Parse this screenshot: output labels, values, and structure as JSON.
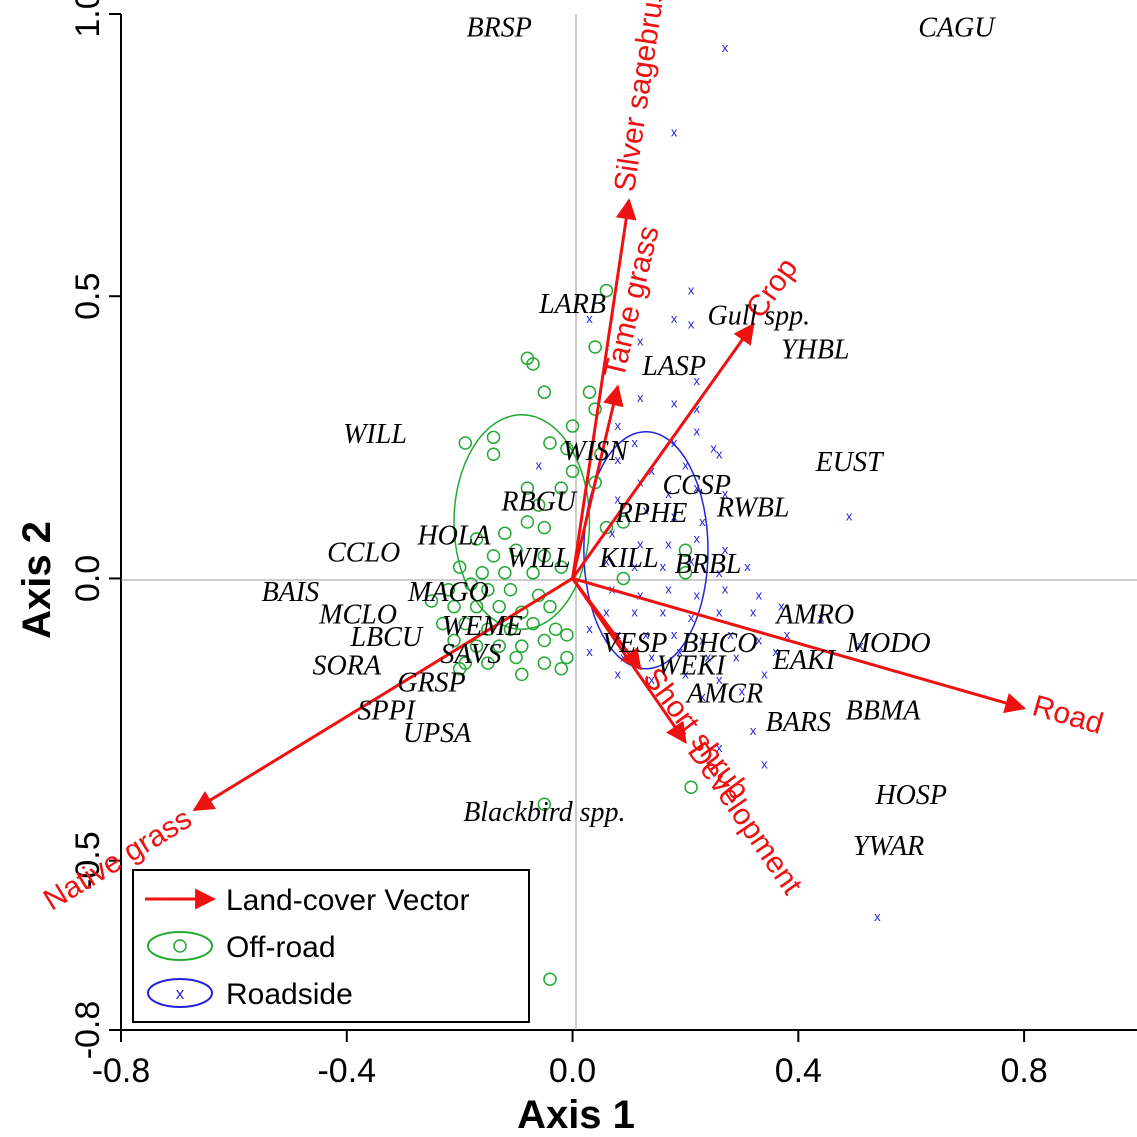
{
  "chart_data": {
    "type": "scatter",
    "xlabel": "Axis 1",
    "ylabel": "Axis 2",
    "xlim": [
      -0.8,
      1.0
    ],
    "ylim": [
      -0.8,
      1.0
    ],
    "xticks": [
      -0.8,
      -0.4,
      0.0,
      0.4,
      0.8
    ],
    "yticks": [
      -0.8,
      -0.5,
      0.0,
      0.5,
      1.0
    ],
    "xtick_labels": [
      "-0.8",
      "-0.4",
      "0.0",
      "0.4",
      "0.8"
    ],
    "ytick_labels": [
      "-0.8",
      "-0.5",
      "0.0",
      "0.5",
      "1.0"
    ],
    "reference_lines": {
      "x": 0,
      "y": 0
    },
    "legend": {
      "placement": "bottom-left",
      "entries": [
        {
          "label": "Land-cover Vector",
          "kind": "arrow",
          "color": "#ee1111"
        },
        {
          "label": "Off-road",
          "kind": "circle",
          "color": "#22aa33"
        },
        {
          "label": "Roadside",
          "kind": "x",
          "color": "#2222dd"
        }
      ]
    },
    "vectors": [
      {
        "label": "Silver sagebrush",
        "x": 0.1,
        "y": 0.67
      },
      {
        "label": "Tame grass",
        "x": 0.08,
        "y": 0.34
      },
      {
        "label": "Crop",
        "x": 0.32,
        "y": 0.45
      },
      {
        "label": "Road",
        "x": 0.8,
        "y": -0.23
      },
      {
        "label": "Development",
        "x": 0.2,
        "y": -0.29
      },
      {
        "label": "Short shrub",
        "x": 0.12,
        "y": -0.16
      },
      {
        "label": "Native grass",
        "x": -0.67,
        "y": -0.41
      }
    ],
    "ellipses": [
      {
        "group": "Off-road",
        "cx": -0.09,
        "cy": 0.1,
        "rx": 0.12,
        "ry": 0.19,
        "color": "#22aa33"
      },
      {
        "group": "Roadside",
        "cx": 0.13,
        "cy": 0.05,
        "rx": 0.11,
        "ry": 0.21,
        "color": "#2222dd"
      }
    ],
    "species": [
      {
        "label": "BRSP",
        "x": -0.13,
        "y": 0.96
      },
      {
        "label": "CAGU",
        "x": 0.68,
        "y": 0.96
      },
      {
        "label": "LARB",
        "x": 0.0,
        "y": 0.47
      },
      {
        "label": "Gull spp.",
        "x": 0.33,
        "y": 0.45
      },
      {
        "label": "YHBL",
        "x": 0.43,
        "y": 0.39
      },
      {
        "label": "LASP",
        "x": 0.18,
        "y": 0.36
      },
      {
        "label": "WILL",
        "x": -0.35,
        "y": 0.24
      },
      {
        "label": "WISN",
        "x": 0.04,
        "y": 0.21
      },
      {
        "label": "EUST",
        "x": 0.49,
        "y": 0.19
      },
      {
        "label": "CCSP",
        "x": 0.22,
        "y": 0.15
      },
      {
        "label": "RBGU",
        "x": -0.06,
        "y": 0.12
      },
      {
        "label": "RPHE",
        "x": 0.14,
        "y": 0.1
      },
      {
        "label": "RWBL",
        "x": 0.32,
        "y": 0.11
      },
      {
        "label": "HOLA",
        "x": -0.21,
        "y": 0.06
      },
      {
        "label": "CCLO",
        "x": -0.37,
        "y": 0.03
      },
      {
        "label": "WILL",
        "x": -0.06,
        "y": 0.02
      },
      {
        "label": "KILL",
        "x": 0.1,
        "y": 0.02
      },
      {
        "label": "BRBL",
        "x": 0.24,
        "y": 0.01
      },
      {
        "label": "BAIS",
        "x": -0.5,
        "y": -0.04
      },
      {
        "label": "MAGO",
        "x": -0.22,
        "y": -0.04
      },
      {
        "label": "AMRO",
        "x": 0.43,
        "y": -0.08
      },
      {
        "label": "MCLO",
        "x": -0.38,
        "y": -0.08
      },
      {
        "label": "LBCU",
        "x": -0.33,
        "y": -0.12
      },
      {
        "label": "WEME",
        "x": -0.16,
        "y": -0.1
      },
      {
        "label": "MODO",
        "x": 0.56,
        "y": -0.13
      },
      {
        "label": "VESP",
        "x": 0.11,
        "y": -0.13
      },
      {
        "label": "BHCO",
        "x": 0.26,
        "y": -0.13
      },
      {
        "label": "SAVS",
        "x": -0.18,
        "y": -0.15
      },
      {
        "label": "EAKI",
        "x": 0.41,
        "y": -0.16
      },
      {
        "label": "WEKI",
        "x": 0.21,
        "y": -0.17
      },
      {
        "label": "SORA",
        "x": -0.4,
        "y": -0.17
      },
      {
        "label": "GRSP",
        "x": -0.25,
        "y": -0.2
      },
      {
        "label": "AMCR",
        "x": 0.27,
        "y": -0.22
      },
      {
        "label": "SPPI",
        "x": -0.33,
        "y": -0.25
      },
      {
        "label": "BBMA",
        "x": 0.55,
        "y": -0.25
      },
      {
        "label": "BARS",
        "x": 0.4,
        "y": -0.27
      },
      {
        "label": "UPSA",
        "x": -0.24,
        "y": -0.29
      },
      {
        "label": "HOSP",
        "x": 0.6,
        "y": -0.4
      },
      {
        "label": "Blackbird spp.",
        "x": -0.05,
        "y": -0.43
      },
      {
        "label": "YWAR",
        "x": 0.56,
        "y": -0.49
      }
    ],
    "series": [
      {
        "name": "Off-road",
        "marker": "circle",
        "color": "#22aa33",
        "points": [
          [
            0.06,
            0.51
          ],
          [
            -0.08,
            0.39
          ],
          [
            -0.07,
            0.38
          ],
          [
            0.04,
            0.41
          ],
          [
            -0.05,
            0.33
          ],
          [
            0.03,
            0.33
          ],
          [
            -0.19,
            0.24
          ],
          [
            -0.14,
            0.25
          ],
          [
            -0.14,
            0.22
          ],
          [
            0.0,
            0.27
          ],
          [
            -0.01,
            0.23
          ],
          [
            0.04,
            0.3
          ],
          [
            0.05,
            0.22
          ],
          [
            -0.04,
            0.24
          ],
          [
            0.0,
            0.19
          ],
          [
            -0.02,
            0.16
          ],
          [
            0.04,
            0.17
          ],
          [
            -0.08,
            0.16
          ],
          [
            -0.06,
            0.13
          ],
          [
            -0.08,
            0.1
          ],
          [
            -0.05,
            0.09
          ],
          [
            -0.12,
            0.08
          ],
          [
            -0.17,
            0.07
          ],
          [
            -0.14,
            0.04
          ],
          [
            -0.1,
            0.05
          ],
          [
            -0.05,
            0.04
          ],
          [
            0.06,
            0.09
          ],
          [
            0.09,
            0.1
          ],
          [
            -0.2,
            0.02
          ],
          [
            -0.16,
            0.01
          ],
          [
            -0.12,
            0.01
          ],
          [
            -0.07,
            0.01
          ],
          [
            -0.02,
            0.02
          ],
          [
            -0.22,
            -0.02
          ],
          [
            -0.18,
            -0.01
          ],
          [
            -0.15,
            -0.02
          ],
          [
            -0.11,
            -0.02
          ],
          [
            -0.06,
            -0.03
          ],
          [
            -0.25,
            -0.04
          ],
          [
            -0.21,
            -0.05
          ],
          [
            -0.17,
            -0.05
          ],
          [
            -0.13,
            -0.05
          ],
          [
            -0.09,
            -0.06
          ],
          [
            -0.04,
            -0.05
          ],
          [
            -0.23,
            -0.08
          ],
          [
            -0.19,
            -0.08
          ],
          [
            -0.15,
            -0.09
          ],
          [
            -0.11,
            -0.09
          ],
          [
            -0.07,
            -0.08
          ],
          [
            -0.03,
            -0.09
          ],
          [
            -0.21,
            -0.11
          ],
          [
            -0.17,
            -0.12
          ],
          [
            -0.13,
            -0.12
          ],
          [
            -0.09,
            -0.12
          ],
          [
            -0.05,
            -0.11
          ],
          [
            -0.01,
            -0.1
          ],
          [
            -0.19,
            -0.15
          ],
          [
            -0.15,
            -0.15
          ],
          [
            -0.1,
            -0.14
          ],
          [
            -0.05,
            -0.15
          ],
          [
            -0.2,
            -0.16
          ],
          [
            -0.09,
            -0.17
          ],
          [
            -0.01,
            -0.14
          ],
          [
            -0.02,
            -0.16
          ],
          [
            0.21,
            -0.37
          ],
          [
            0.2,
            0.01
          ],
          [
            0.2,
            0.05
          ],
          [
            0.09,
            0.0
          ],
          [
            -0.05,
            -0.4
          ],
          [
            -0.04,
            -0.71
          ]
        ]
      },
      {
        "name": "Roadside",
        "marker": "x",
        "color": "#2222dd",
        "points": [
          [
            0.27,
            0.94
          ],
          [
            0.18,
            0.79
          ],
          [
            0.21,
            0.51
          ],
          [
            0.18,
            0.46
          ],
          [
            0.21,
            0.45
          ],
          [
            0.03,
            0.46
          ],
          [
            0.12,
            0.42
          ],
          [
            0.22,
            0.35
          ],
          [
            0.12,
            0.32
          ],
          [
            0.18,
            0.31
          ],
          [
            0.22,
            0.3
          ],
          [
            0.08,
            0.27
          ],
          [
            0.22,
            0.26
          ],
          [
            0.18,
            0.24
          ],
          [
            0.11,
            0.24
          ],
          [
            0.25,
            0.23
          ],
          [
            -0.06,
            0.2
          ],
          [
            0.08,
            0.21
          ],
          [
            0.14,
            0.19
          ],
          [
            0.2,
            0.2
          ],
          [
            0.26,
            0.22
          ],
          [
            0.12,
            0.17
          ],
          [
            0.17,
            0.15
          ],
          [
            0.22,
            0.16
          ],
          [
            0.27,
            0.15
          ],
          [
            0.08,
            0.14
          ],
          [
            0.13,
            0.12
          ],
          [
            0.18,
            0.11
          ],
          [
            0.23,
            0.1
          ],
          [
            0.49,
            0.11
          ],
          [
            0.07,
            0.08
          ],
          [
            0.12,
            0.06
          ],
          [
            0.17,
            0.06
          ],
          [
            0.22,
            0.07
          ],
          [
            0.27,
            0.05
          ],
          [
            0.06,
            0.03
          ],
          [
            0.11,
            0.02
          ],
          [
            0.16,
            0.02
          ],
          [
            0.21,
            0.03
          ],
          [
            0.26,
            0.01
          ],
          [
            0.31,
            0.02
          ],
          [
            0.07,
            -0.02
          ],
          [
            0.12,
            -0.03
          ],
          [
            0.17,
            -0.02
          ],
          [
            0.22,
            -0.03
          ],
          [
            0.27,
            -0.02
          ],
          [
            0.33,
            -0.03
          ],
          [
            0.06,
            -0.06
          ],
          [
            0.11,
            -0.06
          ],
          [
            0.16,
            -0.06
          ],
          [
            0.21,
            -0.07
          ],
          [
            0.26,
            -0.06
          ],
          [
            0.32,
            -0.06
          ],
          [
            0.37,
            -0.05
          ],
          [
            0.44,
            -0.07
          ],
          [
            0.03,
            -0.09
          ],
          [
            0.08,
            -0.1
          ],
          [
            0.13,
            -0.1
          ],
          [
            0.18,
            -0.1
          ],
          [
            0.23,
            -0.11
          ],
          [
            0.28,
            -0.1
          ],
          [
            0.33,
            -0.11
          ],
          [
            0.38,
            -0.1
          ],
          [
            0.03,
            -0.13
          ],
          [
            0.09,
            -0.14
          ],
          [
            0.14,
            -0.14
          ],
          [
            0.19,
            -0.13
          ],
          [
            0.24,
            -0.14
          ],
          [
            0.29,
            -0.14
          ],
          [
            0.36,
            -0.13
          ],
          [
            0.51,
            -0.12
          ],
          [
            0.08,
            -0.17
          ],
          [
            0.14,
            -0.18
          ],
          [
            0.2,
            -0.17
          ],
          [
            0.26,
            -0.18
          ],
          [
            0.34,
            -0.17
          ],
          [
            0.23,
            -0.21
          ],
          [
            0.3,
            -0.2
          ],
          [
            0.32,
            -0.27
          ],
          [
            0.26,
            -0.3
          ],
          [
            0.34,
            -0.33
          ],
          [
            0.54,
            -0.6
          ]
        ]
      }
    ]
  }
}
